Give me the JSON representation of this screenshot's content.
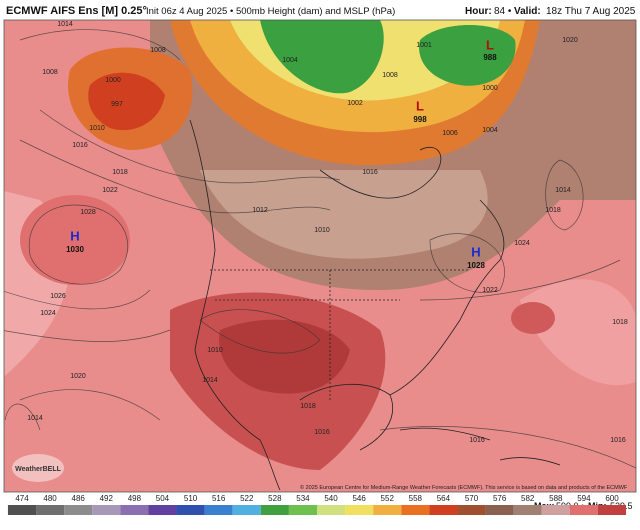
{
  "header": {
    "title": "ECMWF AIFS Ens [M] 0.25°",
    "subtitle": "Init 06z 4 Aug 2025 • 500mb Height (dam) and MSLP (hPa)",
    "hour_label": "Hour:",
    "hour": "84 •",
    "valid_label": "Valid:",
    "valid": "18z Thu 7 Aug 2025"
  },
  "map": {
    "labels": [
      "1014",
      "1008",
      "1008",
      "997",
      "1000",
      "1010",
      "1016",
      "1018",
      "1022",
      "1028",
      "1026",
      "1024",
      "1020",
      "1014",
      "1012",
      "1010",
      "1016",
      "1014",
      "1018",
      "1024",
      "1022",
      "1020",
      "1018",
      "1016",
      "1016",
      "1018",
      "1016",
      "1010",
      "1014",
      "1001",
      "1002",
      "1004",
      "1006",
      "1000",
      "1008",
      "1004"
    ],
    "centers": [
      {
        "letter": "H",
        "value": "1030"
      },
      {
        "letter": "H",
        "value": "1028"
      },
      {
        "letter": "L",
        "value": "988"
      },
      {
        "letter": "L",
        "value": "998"
      }
    ],
    "logo": "WeatherBELL"
  },
  "footer": {
    "copyright": "© 2025 European Centre for Medium-Range Weather Forecasts (ECMWF). This service is based on data and products of the ECMWF",
    "max_label": "Max:",
    "max": "599.0 •",
    "min_label": "Min:",
    "min": "529.5"
  },
  "colorbar": [
    474,
    480,
    486,
    492,
    498,
    504,
    510,
    516,
    522,
    528,
    534,
    540,
    546,
    552,
    558,
    564,
    570,
    576,
    582,
    588,
    594,
    600
  ]
}
